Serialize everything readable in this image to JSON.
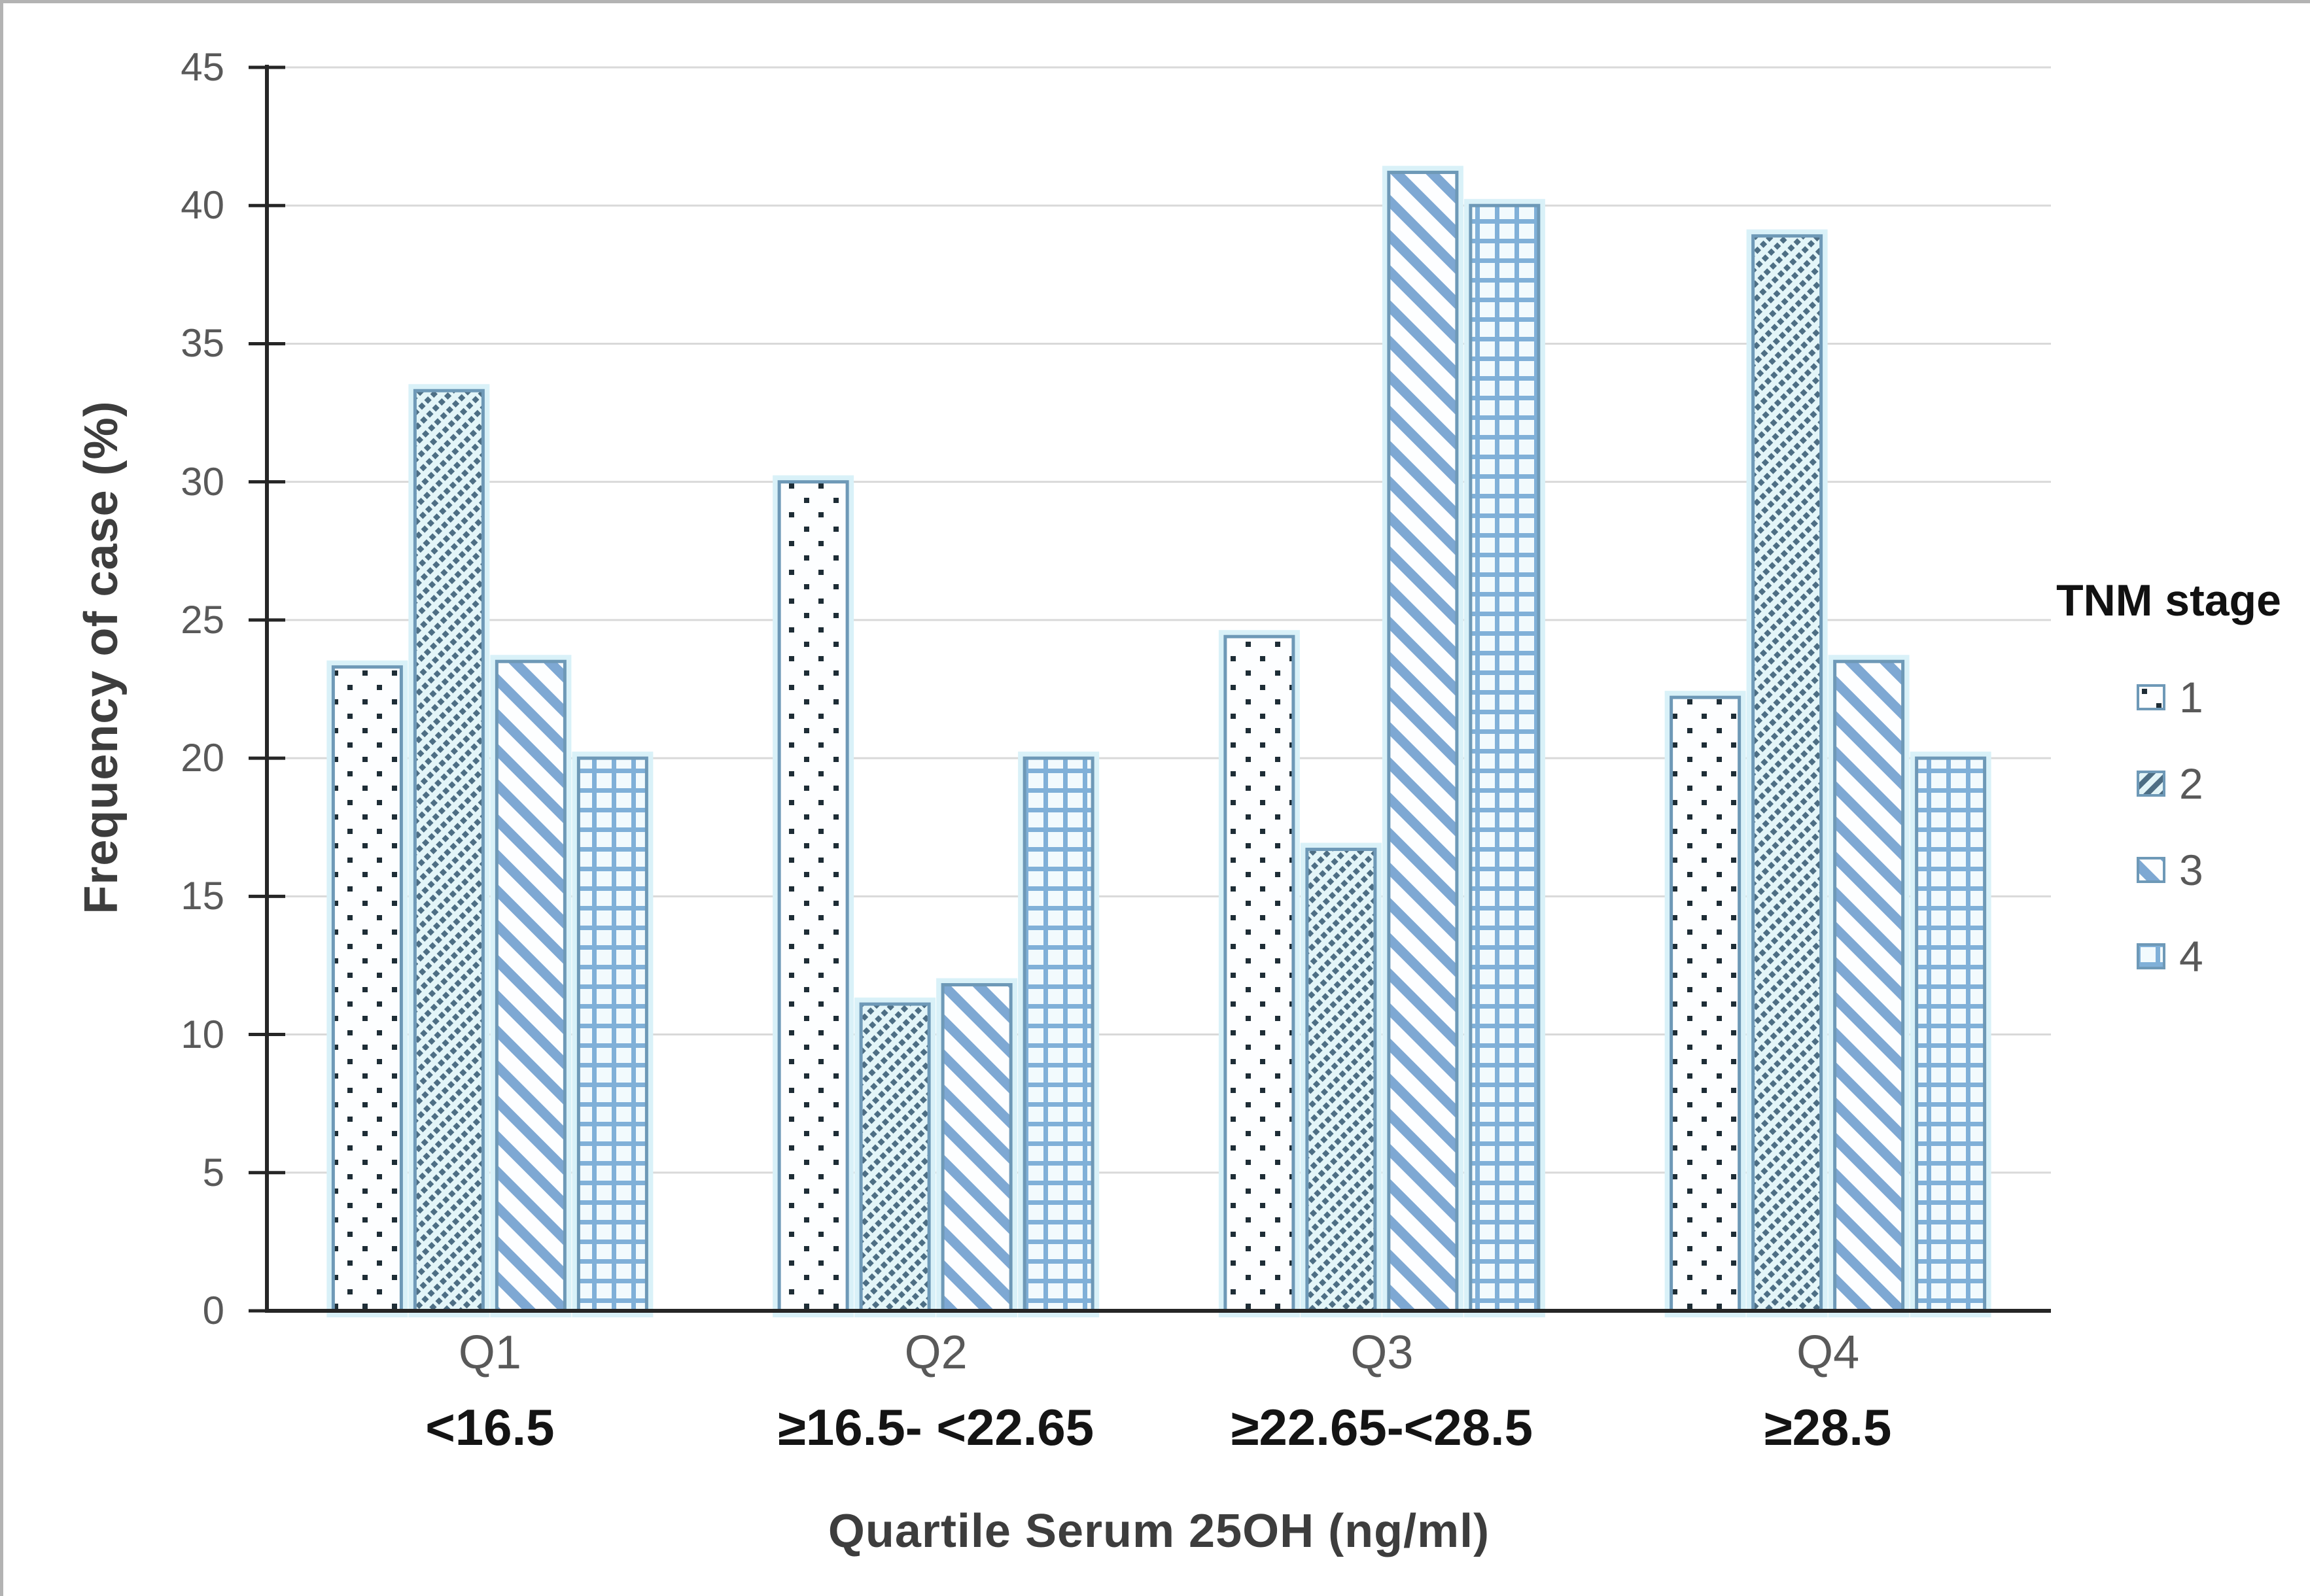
{
  "chart_data": {
    "type": "bar",
    "title": "",
    "categories": [
      "Q1",
      "Q2",
      "Q3",
      "Q4"
    ],
    "category_sublabels": [
      "<16.5",
      "≥16.5- <22.65",
      "≥22.65-<28.5",
      "≥28.5"
    ],
    "series": [
      {
        "name": "1",
        "pattern": "dotted",
        "values": [
          23.3,
          30.0,
          24.4,
          22.2
        ]
      },
      {
        "name": "2",
        "pattern": "diagonal-up-fine",
        "values": [
          33.3,
          11.1,
          16.7,
          38.9
        ]
      },
      {
        "name": "3",
        "pattern": "diagonal-down-wide",
        "values": [
          23.5,
          11.8,
          41.2,
          23.5
        ]
      },
      {
        "name": "4",
        "pattern": "grid",
        "values": [
          20.0,
          20.0,
          40.0,
          20.0
        ]
      }
    ],
    "xlabel": "Quartile Serum 25OH (ng/ml)",
    "ylabel": "Frequency of case (%)",
    "legend_title": "TNM stage",
    "legend_position": "right",
    "ylim": [
      0,
      45
    ],
    "yticks": [
      0,
      5,
      10,
      15,
      20,
      25,
      30,
      35,
      40,
      45
    ],
    "grid": true
  },
  "colors": {
    "bar_border": "#6e99b7",
    "bar_glow": "#d9f1f8",
    "dot": "#1e2d36",
    "hatch_dark": "#4d6e84",
    "hatch_bg": "#e3f5f8",
    "stripe_blue": "#7ea8d3",
    "grid_pattern_blue": "#80b0d8",
    "grid_pattern_bg": "#f2fafd",
    "pattern_bg_light": "#fdfeff",
    "gridline": "#d9d9d9",
    "axis": "#262626",
    "tick_label": "#595959",
    "axis_title": "#3d3d3d",
    "range_label": "#141414",
    "legend_title_color": "#111111"
  }
}
